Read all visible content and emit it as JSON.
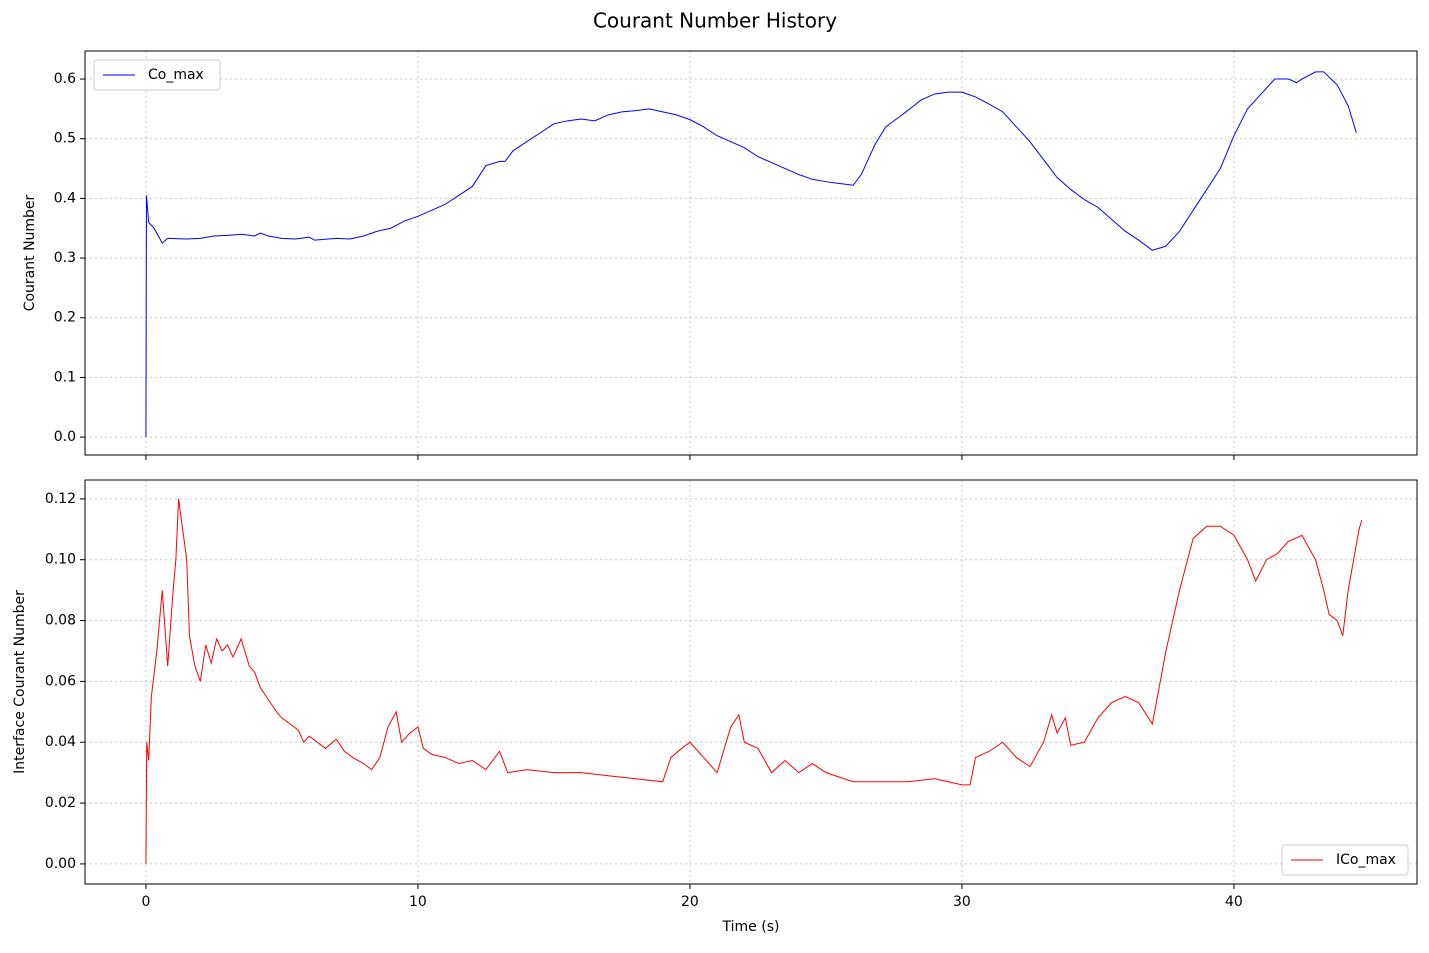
{
  "title": "Courant Number History",
  "chart_data": [
    {
      "type": "line",
      "ylabel": "Courant Number",
      "x": [
        0,
        0.02,
        0.1,
        0.3,
        0.6,
        0.8,
        1.5,
        2,
        2.5,
        3,
        3.5,
        4,
        4.2,
        4.5,
        5,
        5.5,
        6,
        6.2,
        7,
        7.5,
        8,
        8.5,
        9,
        9.5,
        10,
        10.5,
        11,
        11.5,
        12,
        12.5,
        13,
        13.2,
        13.5,
        14,
        14.5,
        15,
        15.5,
        16,
        16.5,
        17,
        17.5,
        18,
        18.5,
        19,
        19.5,
        20,
        20.5,
        21,
        21.5,
        22,
        22.5,
        23,
        23.5,
        24,
        24.5,
        25,
        25.5,
        26,
        26.3,
        26.8,
        27.2,
        27.8,
        28.5,
        29,
        29.5,
        30,
        30.5,
        31,
        31.5,
        32,
        32.5,
        33,
        33.5,
        34,
        34.5,
        35,
        35.5,
        36,
        36.5,
        37,
        37.5,
        38,
        38.5,
        39,
        39.5,
        40,
        40.5,
        41,
        41.5,
        42,
        42.3,
        42.5,
        43,
        43.3,
        43.8,
        44.2,
        44.5
      ],
      "series": [
        {
          "name": "Co_max",
          "color": "#0000ff",
          "values": [
            0,
            0.405,
            0.36,
            0.35,
            0.325,
            0.333,
            0.332,
            0.333,
            0.337,
            0.338,
            0.34,
            0.337,
            0.342,
            0.337,
            0.333,
            0.332,
            0.335,
            0.33,
            0.333,
            0.332,
            0.337,
            0.345,
            0.35,
            0.362,
            0.37,
            0.38,
            0.39,
            0.405,
            0.42,
            0.455,
            0.462,
            0.462,
            0.48,
            0.495,
            0.51,
            0.525,
            0.53,
            0.533,
            0.53,
            0.54,
            0.545,
            0.547,
            0.55,
            0.545,
            0.54,
            0.532,
            0.52,
            0.505,
            0.495,
            0.485,
            0.47,
            0.46,
            0.45,
            0.44,
            0.432,
            0.428,
            0.425,
            0.422,
            0.44,
            0.49,
            0.52,
            0.54,
            0.565,
            0.575,
            0.578,
            0.578,
            0.57,
            0.558,
            0.545,
            0.52,
            0.495,
            0.465,
            0.435,
            0.415,
            0.398,
            0.385,
            0.365,
            0.345,
            0.33,
            0.313,
            0.32,
            0.345,
            0.38,
            0.415,
            0.45,
            0.505,
            0.55,
            0.575,
            0.6,
            0.6,
            0.594,
            0.6,
            0.612,
            0.612,
            0.59,
            0.555,
            0.51
          ]
        }
      ],
      "xlim": [
        -2.24,
        46.73
      ],
      "xticks": [
        0,
        10,
        20,
        30,
        40
      ],
      "ylim": [
        -0.03,
        0.647
      ],
      "yticks": [
        {
          "value": 0,
          "label": "0.0"
        },
        0.1,
        0.2,
        0.3,
        0.4,
        0.5,
        0.6
      ],
      "grid": true,
      "legend": "upper-left"
    },
    {
      "type": "line",
      "ylabel": "Interface Courant Number",
      "xlabel": "Time (s)",
      "x": [
        0,
        0.03,
        0.1,
        0.2,
        0.4,
        0.6,
        0.8,
        1.0,
        1.1,
        1.2,
        1.35,
        1.5,
        1.6,
        1.8,
        2.0,
        2.2,
        2.4,
        2.6,
        2.8,
        3.0,
        3.2,
        3.5,
        3.8,
        4.0,
        4.2,
        4.5,
        4.8,
        5.0,
        5.3,
        5.6,
        5.8,
        6.0,
        6.3,
        6.6,
        7.0,
        7.3,
        7.6,
        8.0,
        8.3,
        8.6,
        8.9,
        9.2,
        9.4,
        9.7,
        10,
        10.2,
        10.5,
        11,
        11.5,
        12,
        12.5,
        13,
        13.3,
        14,
        15,
        16,
        17,
        18,
        19,
        19.3,
        19.7,
        20,
        20.5,
        21,
        21.5,
        21.8,
        22,
        22.5,
        23,
        23.5,
        24,
        24.5,
        25,
        26,
        27,
        28,
        29,
        29.5,
        30,
        30.3,
        30.5,
        31,
        31.5,
        32,
        32.5,
        33,
        33.3,
        33.5,
        33.8,
        34,
        34.5,
        35,
        35.5,
        36,
        36.5,
        37,
        37.5,
        38,
        38.5,
        39,
        39.5,
        40,
        40.5,
        40.8,
        41.2,
        41.6,
        42,
        42.5,
        43,
        43.3,
        43.5,
        43.8,
        44,
        44.2,
        44.4,
        44.6,
        44.7
      ],
      "series": [
        {
          "name": "ICo_max",
          "color": "#ff0000",
          "values": [
            0,
            0.04,
            0.034,
            0.055,
            0.07,
            0.09,
            0.065,
            0.09,
            0.1,
            0.12,
            0.11,
            0.1,
            0.075,
            0.065,
            0.06,
            0.072,
            0.066,
            0.074,
            0.07,
            0.072,
            0.068,
            0.074,
            0.065,
            0.063,
            0.058,
            0.054,
            0.05,
            0.048,
            0.046,
            0.044,
            0.04,
            0.042,
            0.04,
            0.038,
            0.041,
            0.037,
            0.035,
            0.033,
            0.031,
            0.035,
            0.045,
            0.05,
            0.04,
            0.043,
            0.045,
            0.038,
            0.036,
            0.035,
            0.033,
            0.034,
            0.031,
            0.037,
            0.03,
            0.031,
            0.03,
            0.03,
            0.029,
            0.028,
            0.027,
            0.035,
            0.038,
            0.04,
            0.035,
            0.03,
            0.045,
            0.049,
            0.04,
            0.038,
            0.03,
            0.034,
            0.03,
            0.033,
            0.03,
            0.027,
            0.027,
            0.027,
            0.028,
            0.027,
            0.026,
            0.026,
            0.035,
            0.037,
            0.04,
            0.035,
            0.032,
            0.04,
            0.049,
            0.043,
            0.048,
            0.039,
            0.04,
            0.048,
            0.053,
            0.055,
            0.053,
            0.046,
            0.07,
            0.09,
            0.107,
            0.111,
            0.111,
            0.108,
            0.1,
            0.093,
            0.1,
            0.102,
            0.106,
            0.108,
            0.1,
            0.09,
            0.082,
            0.08,
            0.075,
            0.09,
            0.1,
            0.11,
            0.113
          ]
        }
      ],
      "xlim": [
        -2.24,
        46.73
      ],
      "xticks": [
        0,
        10,
        20,
        30,
        40
      ],
      "ylim": [
        -0.0066,
        0.1262
      ],
      "yticks": [
        {
          "value": 0,
          "label": "0.00"
        },
        0.02,
        0.04,
        0.06,
        0.08,
        {
          "value": 0.1,
          "label": "0.10"
        },
        0.12
      ],
      "grid": true,
      "legend": "lower-right"
    }
  ]
}
